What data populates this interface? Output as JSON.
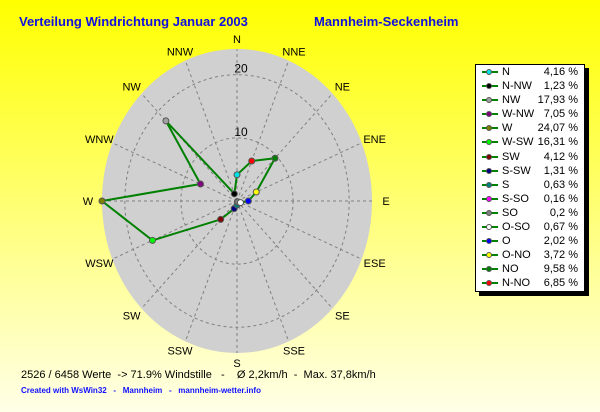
{
  "header": {
    "title": "Verteilung Windrichtung  Januar 2003",
    "station": "Mannheim-Seckenheim"
  },
  "chart_data": {
    "type": "radar",
    "title": "Verteilung Windrichtung  Januar 2003",
    "directions": [
      "N",
      "NNE",
      "NE",
      "ENE",
      "E",
      "ESE",
      "SE",
      "SSE",
      "S",
      "SSW",
      "SW",
      "WSW",
      "W",
      "WNW",
      "NW",
      "NNW"
    ],
    "radial_ticks": [
      10,
      20
    ],
    "radial_max": 24.07,
    "grid": true,
    "line_color": "#008000",
    "area_color": "#d0d0d0",
    "legend_position": "right",
    "series": [
      {
        "label": "N",
        "direction": "N",
        "value": 4.16,
        "value_text": "4,16 %",
        "color": "#00e0e0"
      },
      {
        "label": "N-NW",
        "direction": "NNW",
        "value": 1.23,
        "value_text": "1,23 %",
        "color": "#000000"
      },
      {
        "label": "NW",
        "direction": "NW",
        "value": 17.93,
        "value_text": "17,93 %",
        "color": "#a0a0a0"
      },
      {
        "label": "W-NW",
        "direction": "WNW",
        "value": 7.05,
        "value_text": "7,05 %",
        "color": "#800080"
      },
      {
        "label": "W",
        "direction": "W",
        "value": 24.07,
        "value_text": "24,07 %",
        "color": "#808000"
      },
      {
        "label": "W-SW",
        "direction": "WSW",
        "value": 16.31,
        "value_text": "16,31 %",
        "color": "#00ff00"
      },
      {
        "label": "SW",
        "direction": "SW",
        "value": 4.12,
        "value_text": "4,12 %",
        "color": "#800000"
      },
      {
        "label": "S-SW",
        "direction": "SSW",
        "value": 1.31,
        "value_text": "1,31 %",
        "color": "#000080"
      },
      {
        "label": "S",
        "direction": "S",
        "value": 0.63,
        "value_text": "0,63 %",
        "color": "#008080"
      },
      {
        "label": "S-SO",
        "direction": "SSE",
        "value": 0.16,
        "value_text": "0,16 %",
        "color": "#ff00ff"
      },
      {
        "label": "SO",
        "direction": "SE",
        "value": 0.2,
        "value_text": "0,2 %",
        "color": "#808080"
      },
      {
        "label": "O-SO",
        "direction": "ESE",
        "value": 0.67,
        "value_text": "0,67 %",
        "color": "#ffffff"
      },
      {
        "label": "O",
        "direction": "E",
        "value": 2.02,
        "value_text": "2,02 %",
        "color": "#0000ff"
      },
      {
        "label": "O-NO",
        "direction": "ENE",
        "value": 3.72,
        "value_text": "3,72 %",
        "color": "#ffff00"
      },
      {
        "label": "NO",
        "direction": "NE",
        "value": 9.58,
        "value_text": "9,58 %",
        "color": "#008000"
      },
      {
        "label": "N-NO",
        "direction": "NNE",
        "value": 6.85,
        "value_text": "6,85 %",
        "color": "#ff0000"
      }
    ]
  },
  "footer": {
    "stats": "2526 / 6458 Werte  -> 71.9% Windstille   -    Ø 2,2km/h  -  Max. 37,8km/h",
    "credit": "Created with WsWin32   -   Mannheim   -   mannheim-wetter.info"
  }
}
